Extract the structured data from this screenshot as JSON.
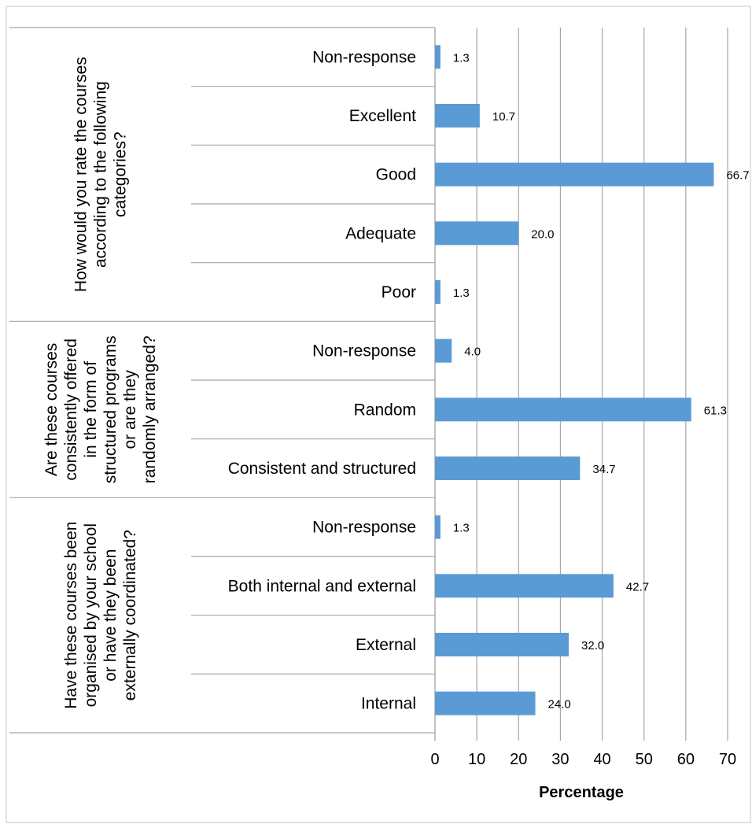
{
  "chart_data": {
    "type": "bar",
    "orientation": "horizontal",
    "xlabel": "Percentage",
    "xlim": [
      0,
      70
    ],
    "xticks": [
      0,
      10,
      20,
      30,
      40,
      50,
      60,
      70
    ],
    "grid": "vertical",
    "legend": "none",
    "bar_color": "#5b9bd5",
    "groups": [
      {
        "label": [
          "How would you rate the courses",
          "according to the following",
          "categories?"
        ],
        "categories": [
          "Non-response",
          "Excellent",
          "Good",
          "Adequate",
          "Poor"
        ],
        "values": [
          1.3,
          10.7,
          66.7,
          20.0,
          1.3
        ],
        "value_labels": [
          "1.3",
          "10.7",
          "66.7",
          "20.0",
          "1.3"
        ]
      },
      {
        "label": [
          "Are these courses",
          "consistently offered",
          "in the form of",
          "structured programs",
          "or are they",
          "randomly arranged?"
        ],
        "categories": [
          "Non-response",
          "Random",
          "Consistent and structured"
        ],
        "values": [
          4.0,
          61.3,
          34.7
        ],
        "value_labels": [
          "4.0",
          "61.3",
          "34.7"
        ]
      },
      {
        "label": [
          "Have these courses been",
          "organised by your school",
          "or have they been",
          "externally coordinated?"
        ],
        "categories": [
          "Non-response",
          "Both internal and external",
          "External",
          "Internal"
        ],
        "values": [
          1.3,
          42.7,
          32.0,
          24.0
        ],
        "value_labels": [
          "1.3",
          "42.7",
          "32.0",
          "24.0"
        ]
      }
    ]
  }
}
